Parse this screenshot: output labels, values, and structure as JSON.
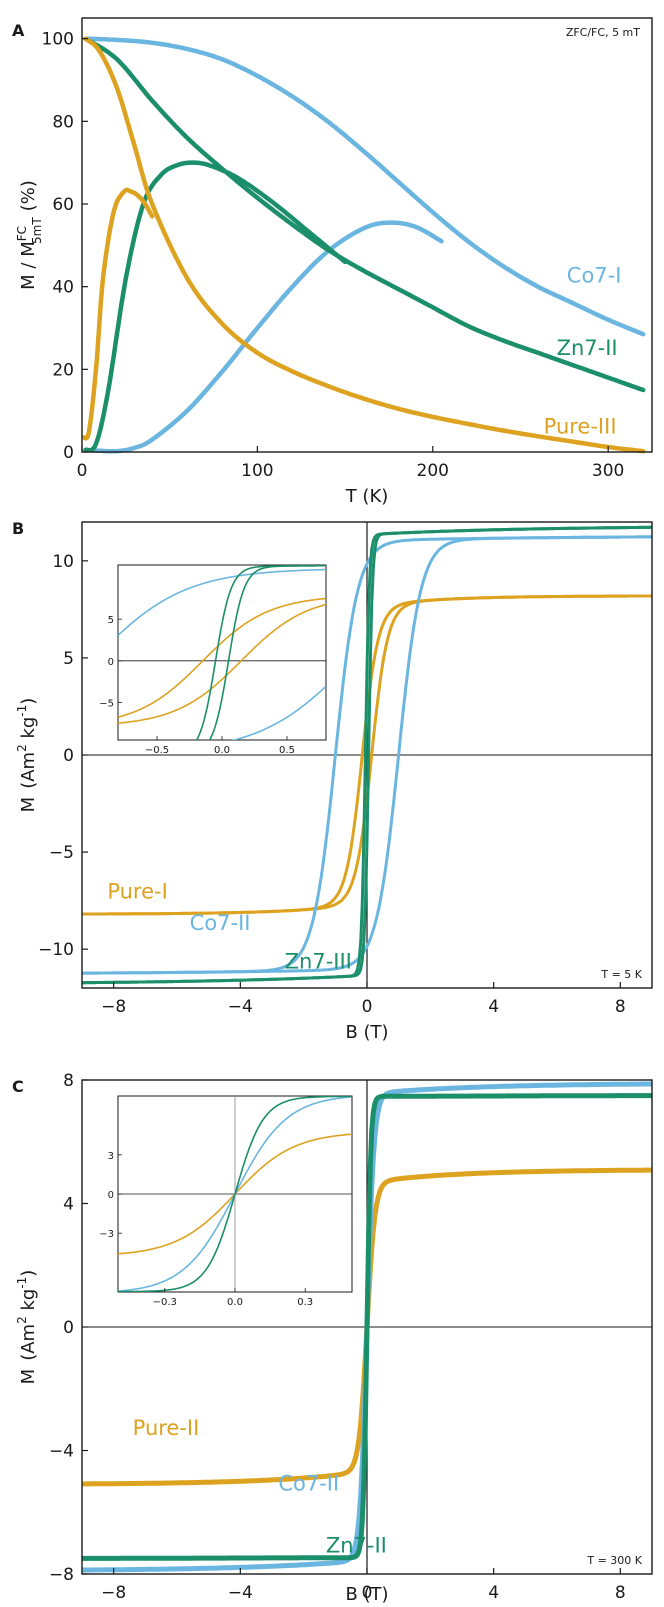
{
  "colors": {
    "orange": "#DDA21F",
    "lightblue": "#6AB6E0",
    "green": "#1B8E6A",
    "axis": "#1a1a1a"
  },
  "chart_data": [
    {
      "id": "A",
      "type": "line",
      "panel_label": "A",
      "annotation": "ZFC/FC, 5 mT",
      "xlabel": "T (K)",
      "ylabel_parts": {
        "base": "M / M",
        "sup": "FC",
        "sub": "5mT",
        "unit": "(%)"
      },
      "xlim": [
        0,
        325
      ],
      "ylim": [
        0,
        105
      ],
      "xticks": [
        0,
        100,
        200,
        300
      ],
      "yticks": [
        0,
        20,
        40,
        60,
        80,
        100
      ],
      "series": [
        {
          "name": "Co7-I",
          "color": "lightblue",
          "branch": "FC",
          "x": [
            2,
            20,
            40,
            60,
            80,
            100,
            120,
            140,
            160,
            180,
            200,
            220,
            240,
            260,
            280,
            300,
            320
          ],
          "y": [
            100,
            99.7,
            99,
            97.5,
            95,
            91,
            86,
            80,
            73,
            65.5,
            58,
            51,
            45,
            40,
            36,
            32,
            28.5
          ]
        },
        {
          "name": "Co7-I",
          "color": "lightblue",
          "branch": "ZFC",
          "x": [
            2,
            10,
            20,
            30,
            40,
            60,
            80,
            100,
            120,
            140,
            160,
            175,
            190,
            205
          ],
          "y": [
            0.5,
            0.3,
            0.2,
            1,
            3,
            10,
            19.5,
            30,
            40,
            48.5,
            54,
            55.5,
            54.5,
            51
          ]
        },
        {
          "name": "Zn7-II",
          "color": "green",
          "branch": "FC",
          "x": [
            2,
            20,
            40,
            60,
            80,
            100,
            120,
            140,
            160,
            180,
            200,
            220,
            240,
            260,
            280,
            300,
            320
          ],
          "y": [
            100,
            95,
            85,
            76,
            68.5,
            61.5,
            55,
            49,
            44,
            39.5,
            35,
            30.5,
            27,
            24,
            21,
            18,
            15
          ]
        },
        {
          "name": "Zn7-II",
          "color": "green",
          "branch": "ZFC",
          "x": [
            2,
            8,
            15,
            25,
            35,
            45,
            55,
            65,
            75,
            90,
            110,
            130,
            150
          ],
          "y": [
            0.5,
            2,
            15,
            42,
            60,
            67,
            69.5,
            70,
            69,
            66,
            60,
            53,
            46
          ]
        },
        {
          "name": "Pure-III",
          "color": "orange",
          "branch": "FC",
          "x": [
            2,
            10,
            20,
            30,
            40,
            60,
            80,
            100,
            120,
            140,
            160,
            180,
            200,
            220,
            240,
            260,
            280,
            300,
            320
          ],
          "y": [
            100,
            97,
            88,
            74,
            60,
            42,
            31,
            24,
            19.5,
            16,
            13,
            10.5,
            8.5,
            6.8,
            5.2,
            3.8,
            2.5,
            1.2,
            0.2
          ]
        },
        {
          "name": "Pure-III",
          "color": "orange",
          "branch": "ZFC",
          "x": [
            1,
            4,
            8,
            12,
            18,
            24,
            28,
            32,
            36,
            40
          ],
          "y": [
            3.5,
            5,
            20,
            42,
            58,
            63,
            63,
            62,
            60,
            57
          ]
        }
      ],
      "labels": [
        {
          "text": "Co7-I",
          "color": "lightblue",
          "x": 292,
          "y": 41
        },
        {
          "text": "Zn7-II",
          "color": "green",
          "x": 288,
          "y": 23.5
        },
        {
          "text": "Pure-III",
          "color": "orange",
          "x": 284,
          "y": 4.5
        }
      ]
    },
    {
      "id": "B",
      "type": "line",
      "panel_label": "B",
      "annotation": "T = 5 K",
      "xlabel": "B (T)",
      "ylabel_parts": {
        "base": "M",
        "unit_pre": "(Am",
        "sup1": "2",
        "mid": " kg",
        "sup2": "-1",
        "unit_post": ")"
      },
      "xlim": [
        -9,
        9
      ],
      "ylim": [
        -12,
        12
      ],
      "xticks": [
        -8,
        -4,
        0,
        4,
        8
      ],
      "yticks": [
        -10,
        -5,
        0,
        5,
        10
      ],
      "series": [
        {
          "name": "Pure-I",
          "color": "orange",
          "Ms": 8.2,
          "Hc": 0.15,
          "w": 0.5,
          "tail_a": 0.55,
          "tail_b": 0.045
        },
        {
          "name": "Co7-II",
          "color": "lightblue",
          "Ms": 11.3,
          "Hc": 1.0,
          "w": 0.7,
          "tail_a": 0.25,
          "tail_b": 0.015
        },
        {
          "name": "Zn7-III",
          "color": "green",
          "Ms": 11.8,
          "Hc": 0.05,
          "w": 0.12,
          "tail_a": 0.45,
          "tail_b": 0.02
        }
      ],
      "labels": [
        {
          "text": "Pure-I",
          "color": "orange",
          "x": -8.2,
          "y": -7.4
        },
        {
          "text": "Co7-II",
          "color": "lightblue",
          "x": -5.6,
          "y": -9.0
        },
        {
          "text": "Zn7-III",
          "color": "green",
          "x": -2.6,
          "y": -11.0
        }
      ],
      "inset": {
        "xlim": [
          -0.8,
          0.8
        ],
        "ylim": [
          -9.5,
          11.5
        ],
        "xticks": [
          -0.5,
          0.0,
          0.5
        ],
        "xtick_labels": [
          "-0.5",
          "0.0",
          "0.5"
        ],
        "yticks": [
          -5,
          0,
          5
        ],
        "ytick_labels": [
          "-5",
          "0",
          "5"
        ]
      }
    },
    {
      "id": "C",
      "type": "line",
      "panel_label": "C",
      "annotation": "T = 300 K",
      "xlabel": "B  (T)",
      "ylabel_parts": {
        "base": "M",
        "unit_pre": "(Am",
        "sup1": "2",
        "mid": " kg",
        "sup2": "-1",
        "unit_post": ")"
      },
      "xlim": [
        -9,
        9
      ],
      "ylim": [
        -8,
        8
      ],
      "xticks": [
        -8,
        -4,
        0,
        4,
        8
      ],
      "yticks": [
        -8,
        -4,
        0,
        4,
        8
      ],
      "series": [
        {
          "name": "Pure-II",
          "color": "orange",
          "Ms": 5.1,
          "w": 0.25,
          "tail_a": 0.42,
          "tail_b": 0.035
        },
        {
          "name": "Co7-II",
          "color": "lightblue",
          "Ms": 7.9,
          "w": 0.22,
          "tail_a": 0.35,
          "tail_b": 0.028
        },
        {
          "name": "Zn7-II",
          "color": "green",
          "Ms": 7.6,
          "w": 0.12,
          "tail_a": 0.13,
          "tail_b": 0.0025
        }
      ],
      "labels": [
        {
          "text": "Pure-II",
          "color": "orange",
          "x": -7.4,
          "y": -3.5
        },
        {
          "text": "Co7-II",
          "color": "lightblue",
          "x": -2.8,
          "y": -5.3
        },
        {
          "text": "Zn7-II",
          "color": "green",
          "x": -1.3,
          "y": -7.3
        }
      ],
      "inset": {
        "xlim": [
          -0.5,
          0.5
        ],
        "ylim": [
          -7.5,
          7.5
        ],
        "xticks": [
          -0.3,
          0.0,
          0.3
        ],
        "xtick_labels": [
          "-0.3",
          "0.0",
          "0.3"
        ],
        "yticks": [
          -3,
          0,
          3
        ],
        "ytick_labels": [
          "-3",
          "0",
          "3"
        ]
      }
    }
  ]
}
